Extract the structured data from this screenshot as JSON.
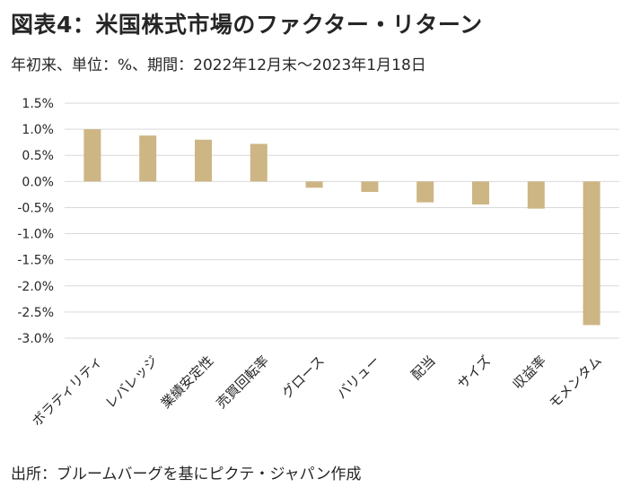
{
  "header": {
    "title": "図表4：米国株式市場のファクター・リターン",
    "subtitle": "年初来、単位：%、期間：2022年12月末～2023年1月18日"
  },
  "footer": {
    "source": "出所：ブルームバーグを基にピクテ・ジャパン作成"
  },
  "colors": {
    "bar": "#CDB584",
    "grid": "#D9D9D9",
    "text": "#262626"
  },
  "chart_data": {
    "type": "bar",
    "title": "",
    "xlabel": "",
    "ylabel": "",
    "categories": [
      "ボラティリティ",
      "レバレッジ",
      "業績安定性",
      "売買回転率",
      "グロース",
      "バリュー",
      "配当",
      "サイズ",
      "収益率",
      "モメンタム"
    ],
    "values": [
      1.0,
      0.88,
      0.8,
      0.72,
      -0.12,
      -0.2,
      -0.4,
      -0.44,
      -0.52,
      -2.75
    ],
    "ylim": [
      -3.0,
      1.5
    ],
    "yticks": [
      1.5,
      1.0,
      0.5,
      0.0,
      -0.5,
      -1.0,
      -1.5,
      -2.0,
      -2.5,
      -3.0
    ],
    "ytick_labels": [
      "1.5%",
      "1.0%",
      "0.5%",
      "0.0%",
      "-0.5%",
      "-1.0%",
      "-1.5%",
      "-2.0%",
      "-2.5%",
      "-3.0%"
    ],
    "grid": true,
    "legend": "none"
  }
}
